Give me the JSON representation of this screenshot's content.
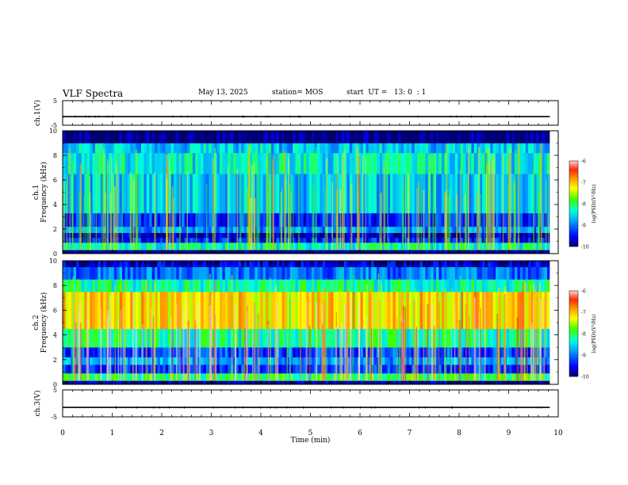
{
  "header": {
    "title": "VLF Spectra",
    "date": "May 13, 2025",
    "station": "station= MOS",
    "start": "start  UT =   13: 0  : 1"
  },
  "chart_data": [
    {
      "type": "line",
      "panel": "ch1-waveform",
      "ylabel": "ch.1(V)",
      "ylim": [
        -5,
        5
      ],
      "yticks": [
        "5",
        "-5"
      ],
      "x": [
        0,
        9.83
      ],
      "values": [
        -1.5,
        -1.5
      ]
    },
    {
      "type": "heatmap",
      "panel": "ch1-spectrogram",
      "ylabel": "Frequency (kHz)",
      "ylabel_prefix": "ch.1",
      "ylim": [
        0,
        10
      ],
      "yticks": [
        "0",
        "2",
        "4",
        "6",
        "8",
        "10"
      ],
      "x_range": [
        0,
        9.83
      ],
      "colorbar": {
        "label": "log(PSD)(V²/Hz)",
        "range": [
          -10,
          -6
        ],
        "ticks": [
          "-6",
          "-7",
          "-8",
          "-9",
          "-10"
        ]
      },
      "bands": [
        {
          "f": [
            0,
            0.3
          ],
          "level": -10.0
        },
        {
          "f": [
            0.3,
            0.9
          ],
          "level": -8.3
        },
        {
          "f": [
            0.9,
            1.3
          ],
          "level": -9.4
        },
        {
          "f": [
            1.3,
            1.7
          ],
          "level": -9.8
        },
        {
          "f": [
            1.7,
            2.2
          ],
          "level": -8.9
        },
        {
          "f": [
            2.2,
            3.3
          ],
          "level": -9.3
        },
        {
          "f": [
            3.3,
            6.5
          ],
          "level": -8.6
        },
        {
          "f": [
            6.5,
            8.2
          ],
          "level": -8.4
        },
        {
          "f": [
            8.2,
            9.0
          ],
          "level": -8.6
        },
        {
          "f": [
            9.0,
            10.0
          ],
          "level": -10.0
        }
      ]
    },
    {
      "type": "heatmap",
      "panel": "ch2-spectrogram",
      "ylabel": "Frequency (kHz)",
      "ylabel_prefix": "ch.2",
      "ylim": [
        0,
        10
      ],
      "yticks": [
        "0",
        "2",
        "4",
        "6",
        "8",
        "10"
      ],
      "x_range": [
        0,
        9.83
      ],
      "colorbar": {
        "label": "log(PSD)(V²/Hz)",
        "range": [
          -10,
          -6
        ],
        "ticks": [
          "-6",
          "-7",
          "-8",
          "-9",
          "-10"
        ]
      },
      "bands": [
        {
          "f": [
            0,
            0.3
          ],
          "level": -9.9
        },
        {
          "f": [
            0.3,
            0.9
          ],
          "level": -8.0
        },
        {
          "f": [
            0.9,
            1.6
          ],
          "level": -9.3
        },
        {
          "f": [
            1.6,
            2.2
          ],
          "level": -8.8
        },
        {
          "f": [
            2.2,
            3.0
          ],
          "level": -9.2
        },
        {
          "f": [
            3.0,
            4.5
          ],
          "level": -8.2
        },
        {
          "f": [
            4.5,
            7.5
          ],
          "level": -7.1
        },
        {
          "f": [
            7.5,
            8.5
          ],
          "level": -8.2
        },
        {
          "f": [
            8.5,
            9.5
          ],
          "level": -9.0
        },
        {
          "f": [
            9.5,
            10.0
          ],
          "level": -9.7
        }
      ]
    },
    {
      "type": "line",
      "panel": "ch3-waveform",
      "ylabel": "ch.3(V)",
      "ylim": [
        -5,
        5
      ],
      "yticks": [
        "5",
        "-5"
      ],
      "x": [
        0,
        9.83
      ],
      "values": [
        -1.5,
        -1.5
      ]
    }
  ],
  "xaxis": {
    "label": "Time (min)",
    "range": [
      0,
      10
    ],
    "ticks": [
      "0",
      "1",
      "2",
      "3",
      "4",
      "5",
      "6",
      "7",
      "8",
      "9",
      "10"
    ]
  }
}
